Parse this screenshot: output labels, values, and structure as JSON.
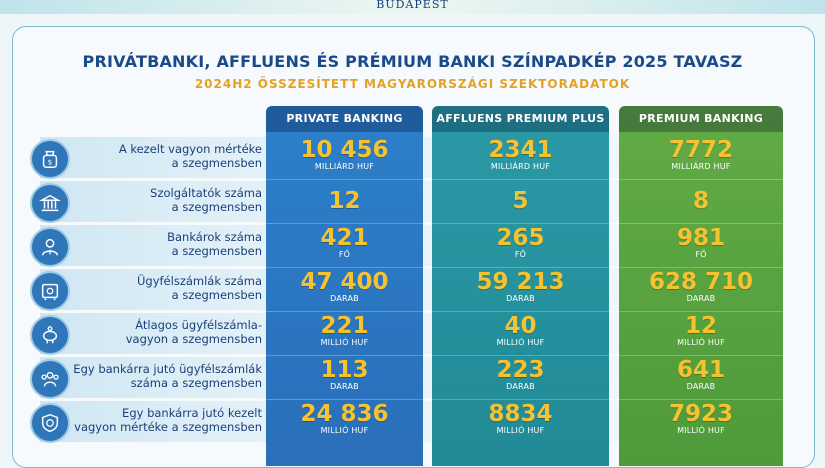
{
  "header": {
    "city": "BUDAPEST",
    "title": "PRIVÁTBANKI, AFFLUENS ÉS PRÉMIUM BANKI SZÍNPADKÉP 2025 TAVASZ",
    "subtitle": "2024H2 ÖSSZESÍTETT MAGYARORSZÁGI SZEKTORADATOK"
  },
  "columns": [
    "PRIVATE BANKING",
    "AFFLUENS PREMIUM PLUS",
    "PREMIUM BANKING"
  ],
  "colors": {
    "private_banking": "#2d7fc9",
    "affluens": "#2b9aa6",
    "premium": "#62ab45",
    "value": "#f5c232",
    "title": "#1b4a8a",
    "subtitle": "#e3a126"
  },
  "rows": [
    {
      "icon": "money-bag-icon",
      "label1": "A kezelt vagyon mértéke",
      "label2": "a szegmensben",
      "cells": [
        {
          "value": "10 456",
          "unit": "MILLIÁRD HUF"
        },
        {
          "value": "2341",
          "unit": "MILLIÁRD HUF"
        },
        {
          "value": "7772",
          "unit": "MILLIÁRD HUF"
        }
      ]
    },
    {
      "icon": "bank-building-icon",
      "label1": "Szolgáltatók száma",
      "label2": "a szegmensben",
      "cells": [
        {
          "value": "12",
          "unit": ""
        },
        {
          "value": "5",
          "unit": ""
        },
        {
          "value": "8",
          "unit": ""
        }
      ]
    },
    {
      "icon": "banker-person-icon",
      "label1": "Bankárok száma",
      "label2": "a szegmensben",
      "cells": [
        {
          "value": "421",
          "unit": "FŐ"
        },
        {
          "value": "265",
          "unit": "FŐ"
        },
        {
          "value": "981",
          "unit": "FŐ"
        }
      ]
    },
    {
      "icon": "safe-icon",
      "label1": "Ügyfélszámlák száma",
      "label2": "a szegmensben",
      "cells": [
        {
          "value": "47 400",
          "unit": "DARAB"
        },
        {
          "value": "59 213",
          "unit": "DARAB"
        },
        {
          "value": "628 710",
          "unit": "DARAB"
        }
      ]
    },
    {
      "icon": "piggy-bank-icon",
      "label1": "Átlagos ügyfélszámla-",
      "label2": "vagyon a szegmensben",
      "cells": [
        {
          "value": "221",
          "unit": "MILLIÓ HUF"
        },
        {
          "value": "40",
          "unit": "MILLIÓ HUF"
        },
        {
          "value": "12",
          "unit": "MILLIÓ HUF"
        }
      ]
    },
    {
      "icon": "people-group-icon",
      "label1": "Egy bankárra jutó ügyfélszámlák",
      "label2": "száma a szegmensben",
      "cells": [
        {
          "value": "113",
          "unit": "DARAB"
        },
        {
          "value": "223",
          "unit": "DARAB"
        },
        {
          "value": "641",
          "unit": "DARAB"
        }
      ]
    },
    {
      "icon": "shield-coin-icon",
      "label1": "Egy bankárra jutó kezelt",
      "label2": "vagyon mértéke a szegmensben",
      "cells": [
        {
          "value": "24 836",
          "unit": "MILLIÓ HUF"
        },
        {
          "value": "8834",
          "unit": "MILLIÓ HUF"
        },
        {
          "value": "7923",
          "unit": "MILLIÓ HUF"
        }
      ]
    }
  ]
}
